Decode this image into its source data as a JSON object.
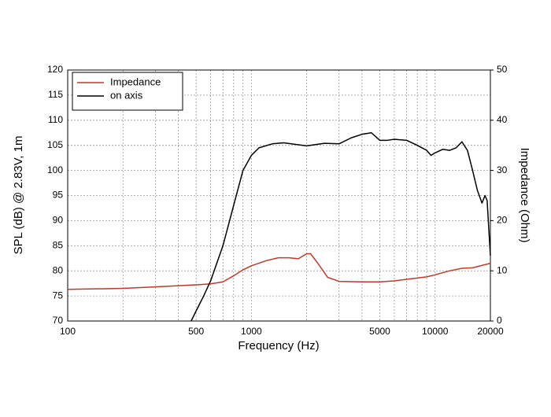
{
  "chart_data": {
    "type": "line",
    "xlabel": "Frequency (Hz)",
    "ylabel": "SPL (dB) @ 2.83V, 1m",
    "y2label": "Impedance (Ohm)",
    "xscale": "log",
    "xlim": [
      100,
      20000
    ],
    "xticks": [
      100,
      500,
      1000,
      5000,
      10000,
      20000
    ],
    "xminorticks": [
      200,
      300,
      400,
      600,
      700,
      800,
      900,
      2000,
      3000,
      4000,
      6000,
      7000,
      8000,
      9000
    ],
    "ylim": [
      70,
      120
    ],
    "yticks": [
      70,
      75,
      80,
      85,
      90,
      95,
      100,
      105,
      110,
      115,
      120
    ],
    "y2lim": [
      0,
      50
    ],
    "y2ticks": [
      0,
      10,
      20,
      30,
      40,
      50
    ],
    "grid": true,
    "legend": "upper-left",
    "series": [
      {
        "name": "Impedance",
        "color": "#c0392b",
        "axis": "y2",
        "x": [
          100,
          200,
          300,
          500,
          600,
          700,
          800,
          900,
          1000,
          1200,
          1400,
          1600,
          1800,
          2000,
          2100,
          2300,
          2600,
          3000,
          4000,
          5000,
          6000,
          7000,
          9000,
          10000,
          12000,
          14000,
          16000,
          20000
        ],
        "values": [
          6.3,
          6.5,
          6.8,
          7.2,
          7.4,
          7.8,
          9,
          10.2,
          11,
          12,
          12.6,
          12.6,
          12.4,
          13.4,
          13.4,
          11.5,
          8.7,
          7.9,
          7.8,
          7.8,
          8,
          8.3,
          8.8,
          9.2,
          10,
          10.5,
          10.6,
          11.5
        ]
      },
      {
        "name": "on axis",
        "color": "#000000",
        "x": [
          470,
          500,
          550,
          600,
          700,
          800,
          900,
          1000,
          1100,
          1300,
          1500,
          2000,
          2500,
          3000,
          3500,
          4000,
          4500,
          5000,
          5500,
          6000,
          7000,
          8000,
          9000,
          9500,
          10000,
          11000,
          12000,
          13000,
          14000,
          15000,
          16000,
          17000,
          18000,
          18700,
          19200,
          20000
        ],
        "values": [
          70,
          72,
          75,
          78,
          85,
          93,
          100,
          103,
          104.5,
          105.3,
          105.5,
          104.9,
          105.4,
          105.3,
          106.5,
          107.2,
          107.5,
          106,
          106,
          106.2,
          106,
          105,
          104,
          103,
          103.5,
          104.2,
          104,
          104.5,
          105.7,
          104,
          100,
          96,
          93.5,
          95,
          94,
          83
        ]
      }
    ]
  }
}
